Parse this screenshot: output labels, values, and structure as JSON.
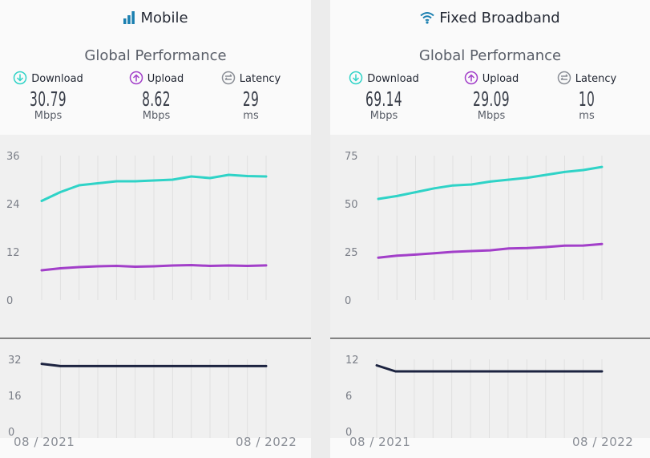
{
  "panels": [
    {
      "title": "Mobile",
      "icon": "signal-bars-icon",
      "subtitle": "Global Performance",
      "metrics": [
        {
          "label": "Download",
          "value": "30.79",
          "unit": "Mbps",
          "color": "#2fd3c7"
        },
        {
          "label": "Upload",
          "value": "8.62",
          "unit": "Mbps",
          "color": "#a23fc9"
        },
        {
          "label": "Latency",
          "value": "29",
          "unit": "ms",
          "color": "#8a8e96"
        }
      ]
    },
    {
      "title": "Fixed Broadband",
      "icon": "wifi-icon",
      "subtitle": "Global Performance",
      "metrics": [
        {
          "label": "Download",
          "value": "69.14",
          "unit": "Mbps",
          "color": "#2fd3c7"
        },
        {
          "label": "Upload",
          "value": "29.09",
          "unit": "Mbps",
          "color": "#a23fc9"
        },
        {
          "label": "Latency",
          "value": "10",
          "unit": "ms",
          "color": "#8a8e96"
        }
      ]
    }
  ],
  "chart_data": [
    {
      "type": "line",
      "panel": "Mobile",
      "x_start": "08 / 2021",
      "x_end": "08 / 2022",
      "yticks": [
        0,
        12,
        24,
        36
      ],
      "ylim": [
        0,
        36
      ],
      "grid": true,
      "series": [
        {
          "name": "Download",
          "color": "#2fd3c7",
          "values": [
            24.7,
            26.9,
            28.6,
            29.1,
            29.6,
            29.6,
            29.8,
            30.0,
            30.8,
            30.4,
            31.2,
            30.9,
            30.79
          ]
        },
        {
          "name": "Upload",
          "color": "#a23fc9",
          "values": [
            7.4,
            7.9,
            8.2,
            8.4,
            8.5,
            8.3,
            8.4,
            8.6,
            8.7,
            8.5,
            8.6,
            8.5,
            8.62
          ]
        }
      ]
    },
    {
      "type": "line",
      "panel": "Mobile",
      "x_start": "08 / 2021",
      "x_end": "08 / 2022",
      "yticks": [
        0,
        16,
        32
      ],
      "ylim": [
        0,
        32
      ],
      "grid": true,
      "series": [
        {
          "name": "Latency",
          "color": "#1c2340",
          "values": [
            30,
            29,
            29,
            29,
            29,
            29,
            29,
            29,
            29,
            29,
            29,
            29,
            29
          ]
        }
      ]
    },
    {
      "type": "line",
      "panel": "Fixed Broadband",
      "x_start": "08 / 2021",
      "x_end": "08 / 2022",
      "yticks": [
        0,
        25,
        50,
        75
      ],
      "ylim": [
        0,
        75
      ],
      "grid": true,
      "series": [
        {
          "name": "Download",
          "color": "#2fd3c7",
          "values": [
            52.5,
            54.0,
            56.0,
            58.0,
            59.5,
            60.0,
            61.5,
            62.5,
            63.5,
            65.0,
            66.5,
            67.5,
            69.14
          ]
        },
        {
          "name": "Upload",
          "color": "#a23fc9",
          "values": [
            22.0,
            23.0,
            23.6,
            24.3,
            25.0,
            25.4,
            25.8,
            26.8,
            27.0,
            27.5,
            28.2,
            28.3,
            29.09
          ]
        }
      ]
    },
    {
      "type": "line",
      "panel": "Fixed Broadband",
      "x_start": "08 / 2021",
      "x_end": "08 / 2022",
      "yticks": [
        0,
        6,
        12
      ],
      "ylim": [
        0,
        12
      ],
      "grid": true,
      "series": [
        {
          "name": "Latency",
          "color": "#1c2340",
          "values": [
            11,
            10,
            10,
            10,
            10,
            10,
            10,
            10,
            10,
            10,
            10,
            10,
            10
          ]
        }
      ]
    }
  ]
}
